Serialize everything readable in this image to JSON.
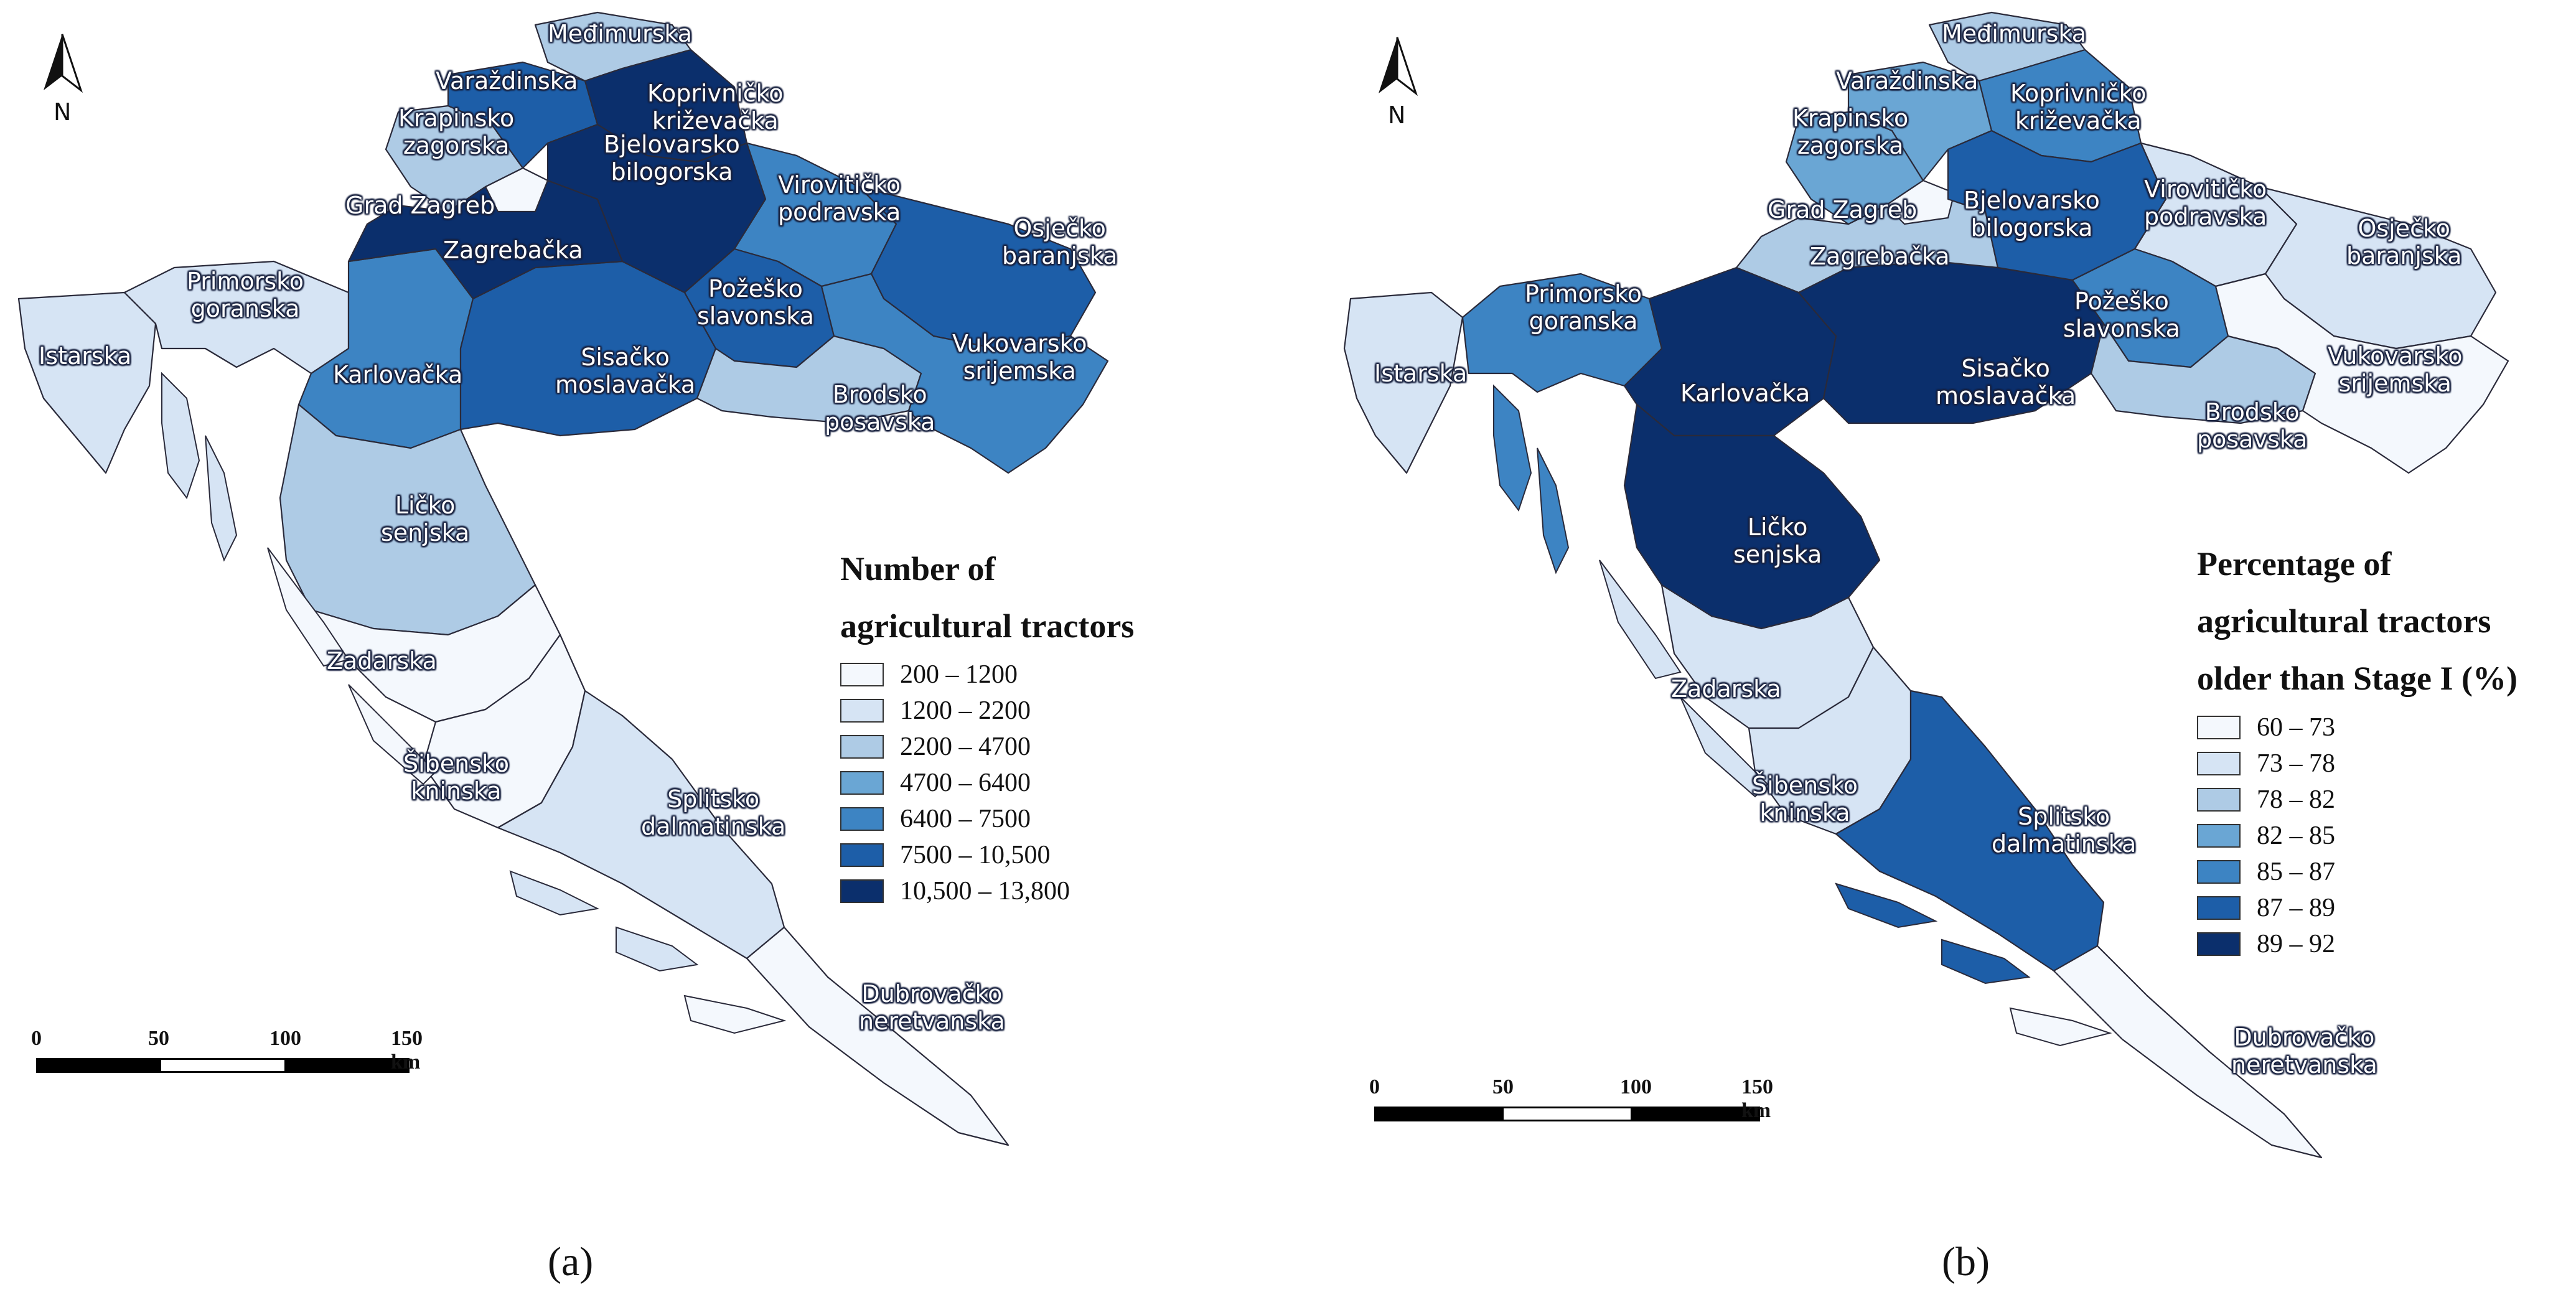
{
  "panel_a": {
    "caption": "(a)",
    "north_label": "N",
    "legend": {
      "title_line1": "Number of",
      "title_line2": "agricultural tractors",
      "classes": [
        {
          "label": "200 – 1200",
          "color": "#f4f8fd"
        },
        {
          "label": "1200 – 2200",
          "color": "#d6e4f4"
        },
        {
          "label": "2200 – 4700",
          "color": "#aecbe5"
        },
        {
          "label": "4700 – 6400",
          "color": "#6aa6d4"
        },
        {
          "label": "6400 – 7500",
          "color": "#3d84c3"
        },
        {
          "label": "7500 – 10,500",
          "color": "#1d5ea8"
        },
        {
          "label": "10,500 – 13,800",
          "color": "#0b2f6c"
        }
      ]
    },
    "scale": {
      "tick_0": "0",
      "tick_1": "50",
      "tick_2": "100",
      "tick_3": "150 km"
    },
    "regions": {
      "medimurska": "Međimurska",
      "varazdinska": "Varaždinska",
      "koprivnicko": "Koprivničko\nkriževačka",
      "krapinsko": "Krapinsko\nzagorska",
      "grad_zagreb": "Grad Zagreb",
      "bjelovarsko": "Bjelovarsko\nbilogorska",
      "viroviticko": "Virovitičko\npodravska",
      "osjecko": "Osječko\nbaranjska",
      "zagrebacka": "Zagrebačka",
      "primorsko": "Primorsko\ngoranska",
      "pozesko": "Požeško\nslavonska",
      "istarska": "Istarska",
      "karlovacka": "Karlovačka",
      "sisacko": "Sisačko\nmoslavačka",
      "vukovarsko": "Vukovarsko\nsrijemska",
      "brodsko": "Brodsko\nposavska",
      "licko": "Ličko\nsenjska",
      "zadarska": "Zadarska",
      "sibensko": "Šibensko\nkninska",
      "splitsko": "Splitsko\ndalmatinska",
      "dubrovacko": "Dubrovačko\nneretvanska"
    }
  },
  "panel_b": {
    "caption": "(b)",
    "north_label": "N",
    "legend": {
      "title_line1": "Percentage of",
      "title_line2": "agricultural tractors",
      "title_line3": "older than Stage I (%)",
      "classes": [
        {
          "label": "60 – 73",
          "color": "#f4f8fd"
        },
        {
          "label": "73 – 78",
          "color": "#d6e4f4"
        },
        {
          "label": "78 – 82",
          "color": "#aecbe5"
        },
        {
          "label": "82 – 85",
          "color": "#6aa6d4"
        },
        {
          "label": "85 – 87",
          "color": "#3d84c3"
        },
        {
          "label": "87 – 89",
          "color": "#1d5ea8"
        },
        {
          "label": "89 – 92",
          "color": "#0b2f6c"
        }
      ]
    },
    "scale": {
      "tick_0": "0",
      "tick_1": "50",
      "tick_2": "100",
      "tick_3": "150 km"
    },
    "regions": {
      "medimurska": "Međimurska",
      "varazdinska": "Varaždinska",
      "koprivnicko": "Koprivničko\nkriževačka",
      "krapinsko": "Krapinsko\nzagorska",
      "grad_zagreb": "Grad Zagreb",
      "bjelovarsko": "Bjelovarsko\nbilogorska",
      "viroviticko": "Virovitičko\npodravska",
      "osjecko": "Osječko\nbaranjska",
      "zagrebacka": "Zagrebačka",
      "primorsko": "Primorsko\ngoranska",
      "pozesko": "Požeško\nslavonska",
      "istarska": "Istarska",
      "karlovacka": "Karlovačka",
      "sisacko": "Sisačko\nmoslavačka",
      "vukovarsko": "Vukovarsko\nsrijemska",
      "brodsko": "Brodsko\nposavska",
      "licko": "Ličko\nsenjska",
      "zadarska": "Zadarska",
      "sibensko": "Šibensko\nkninska",
      "splitsko": "Splitsko\ndalmatinska",
      "dubrovacko": "Dubrovačko\nneretvanska"
    }
  }
}
